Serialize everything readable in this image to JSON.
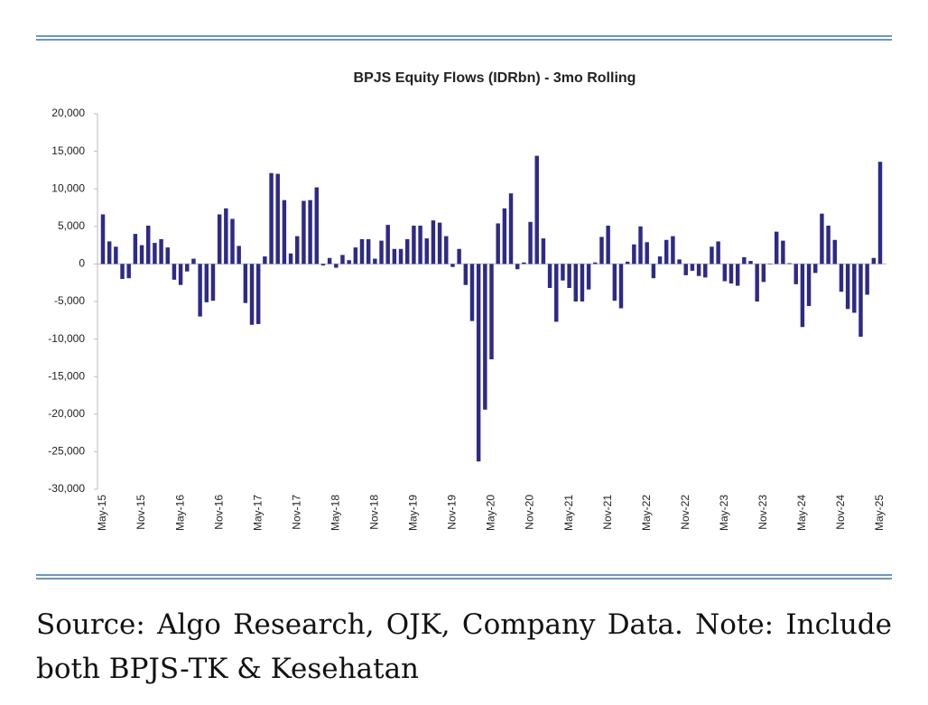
{
  "chart_data": {
    "type": "bar",
    "title": "BPJS Equity Flows (IDRbn) - 3mo Rolling",
    "categories": [
      "May-15",
      null,
      null,
      null,
      null,
      null,
      "Nov-15",
      null,
      null,
      null,
      null,
      null,
      "May-16",
      null,
      null,
      null,
      null,
      null,
      "Nov-16",
      null,
      null,
      null,
      null,
      null,
      "May-17",
      null,
      null,
      null,
      null,
      null,
      "Nov-17",
      null,
      null,
      null,
      null,
      null,
      "May-18",
      null,
      null,
      null,
      null,
      null,
      "Nov-18",
      null,
      null,
      null,
      null,
      null,
      "May-19",
      null,
      null,
      null,
      null,
      null,
      "Nov-19",
      null,
      null,
      null,
      null,
      null,
      "May-20",
      null,
      null,
      null,
      null,
      null,
      "Nov-20",
      null,
      null,
      null,
      null,
      null,
      "May-21",
      null,
      null,
      null,
      null,
      null,
      "Nov-21",
      null,
      null,
      null,
      null,
      null,
      "May-22",
      null,
      null,
      null,
      null,
      null,
      "Nov-22",
      null,
      null,
      null,
      null,
      null,
      "May-23",
      null,
      null,
      null,
      null,
      null,
      "Nov-23",
      null,
      null,
      null,
      null,
      null,
      "May-24",
      null,
      null,
      null,
      null,
      null,
      "Nov-24",
      null,
      null,
      null,
      null,
      null,
      "May-25"
    ],
    "values": [
      6600,
      3000,
      2300,
      -2000,
      -1900,
      4000,
      2500,
      5100,
      2800,
      3300,
      2200,
      -2100,
      -2800,
      -1000,
      700,
      -7000,
      -5100,
      -4900,
      6600,
      7400,
      6000,
      2400,
      -5200,
      -8100,
      -8000,
      1000,
      12100,
      12000,
      8500,
      1400,
      3700,
      8400,
      8500,
      10200,
      -200,
      800,
      -500,
      1200,
      500,
      2200,
      3300,
      3300,
      700,
      3100,
      5200,
      2000,
      2000,
      3300,
      5100,
      5100,
      3400,
      5800,
      5500,
      3700,
      -400,
      2000,
      -2800,
      -7600,
      -26300,
      -19400,
      -12700,
      5400,
      7400,
      9400,
      -700,
      200,
      5600,
      14400,
      3400,
      -3200,
      -7700,
      -2200,
      -3200,
      -5000,
      -5000,
      -3400,
      200,
      3600,
      5100,
      -4900,
      -5900,
      300,
      2600,
      5000,
      2900,
      -1900,
      1000,
      3200,
      3700,
      600,
      -1500,
      -900,
      -1600,
      -1800,
      2300,
      3000,
      -2300,
      -2600,
      -2900,
      900,
      400,
      -5000,
      -2400,
      0,
      4300,
      3100,
      100,
      -2700,
      -8400,
      -5600,
      -1200,
      6700,
      5100,
      3200,
      -3700,
      -6000,
      -6500,
      -9700,
      -4100,
      800,
      13600
    ],
    "color": "#2e2a86",
    "ylim": [
      -30000,
      20000
    ],
    "yticks": [
      {
        "value": -30000,
        "label": "-30,000"
      },
      {
        "value": -25000,
        "label": "-25,000"
      },
      {
        "value": -20000,
        "label": "-20,000"
      },
      {
        "value": -15000,
        "label": "-15,000"
      },
      {
        "value": -10000,
        "label": "-10,000"
      },
      {
        "value": -5000,
        "label": "-5,000"
      },
      0,
      {
        "value": 5000,
        "label": "5,000"
      },
      {
        "value": 10000,
        "label": "10,000"
      },
      {
        "value": 15000,
        "label": "15,000"
      },
      {
        "value": 20000,
        "label": "20,000"
      }
    ],
    "grid": false
  },
  "caption": "Source: Algo Research, OJK, Company Data. Note: Include both BPJS-TK & Kesehatan"
}
